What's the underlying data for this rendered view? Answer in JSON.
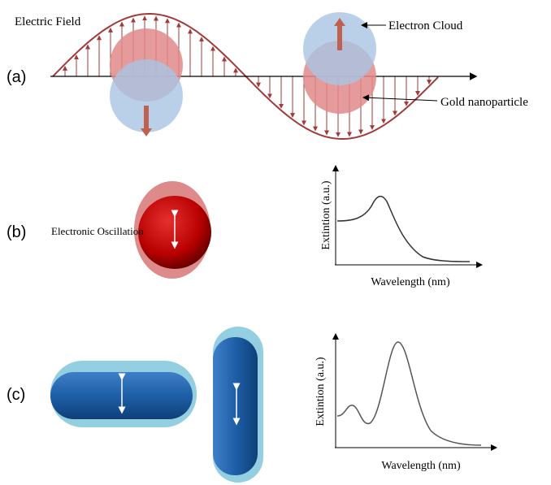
{
  "panel_a": {
    "label": "(a)",
    "electric_field": "Electric Field",
    "electron_cloud": "Electron Cloud",
    "gold_nanoparticle": "Gold nanoparticle"
  },
  "panel_b": {
    "label": "(b)",
    "oscillation": "Electronic Oscillation",
    "y_axis_label": "Extintion (a.u.)",
    "x_axis_label": "Wavelength (nm)"
  },
  "panel_c": {
    "label": "(c)",
    "y_axis_label": "Extintion (a.u.)",
    "x_axis_label": "Wavelength (nm)"
  }
}
